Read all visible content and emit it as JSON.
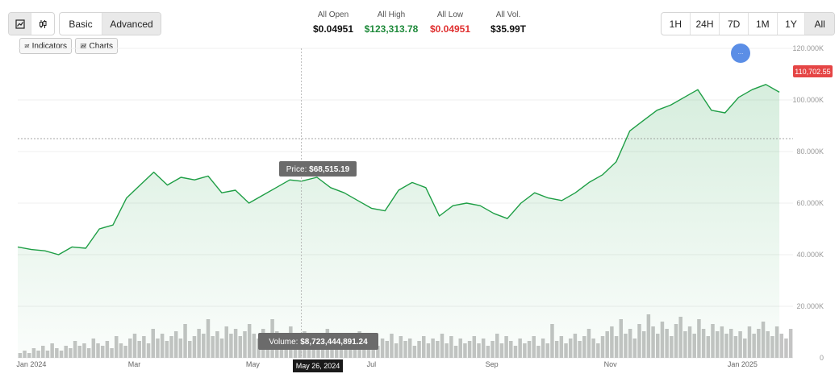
{
  "toolbar": {
    "chart_icons": [
      "line-chart-icon",
      "candlestick-icon"
    ],
    "modes": [
      "Basic",
      "Advanced"
    ],
    "active_mode": "Advanced",
    "ranges": [
      "1H",
      "24H",
      "7D",
      "1M",
      "1Y",
      "All"
    ],
    "active_range": "All",
    "tools": [
      {
        "label": "Indicators",
        "icon": "indicators-icon"
      },
      {
        "label": "Charts",
        "icon": "charts-icon"
      }
    ]
  },
  "stats": [
    {
      "label": "All Open",
      "value": "$0.04951",
      "color": "#111111"
    },
    {
      "label": "All High",
      "value": "$123,313.78",
      "color": "#1f8a3b"
    },
    {
      "label": "All Low",
      "value": "$0.04951",
      "color": "#e03030"
    },
    {
      "label": "All Vol.",
      "value": "$35.99T",
      "color": "#111111"
    }
  ],
  "colors": {
    "line": "#1e9e45",
    "area": "#1e9e45",
    "volume": "#c4c4c4",
    "current_badge": "#e54545"
  },
  "chart_data": {
    "type": "line",
    "x_ticks": [
      "Jan 2024",
      "Mar",
      "May",
      "Jul",
      "Sep",
      "Nov",
      "Jan 2025"
    ],
    "y_ticks": [
      "120.000K",
      "100.000K",
      "80.000K",
      "60.000K",
      "40.000K",
      "20.000K",
      "0"
    ],
    "ylim": [
      0,
      120000
    ],
    "price": {
      "x": [
        "2024-01-01",
        "2024-01-08",
        "2024-01-15",
        "2024-01-22",
        "2024-01-29",
        "2024-02-05",
        "2024-02-12",
        "2024-02-19",
        "2024-02-26",
        "2024-03-04",
        "2024-03-11",
        "2024-03-18",
        "2024-03-25",
        "2024-04-01",
        "2024-04-08",
        "2024-04-15",
        "2024-04-22",
        "2024-04-29",
        "2024-05-06",
        "2024-05-13",
        "2024-05-20",
        "2024-05-26",
        "2024-06-03",
        "2024-06-10",
        "2024-06-17",
        "2024-06-24",
        "2024-07-01",
        "2024-07-08",
        "2024-07-15",
        "2024-07-22",
        "2024-07-29",
        "2024-08-05",
        "2024-08-12",
        "2024-08-19",
        "2024-08-26",
        "2024-09-02",
        "2024-09-09",
        "2024-09-16",
        "2024-09-23",
        "2024-09-30",
        "2024-10-07",
        "2024-10-14",
        "2024-10-21",
        "2024-10-28",
        "2024-11-04",
        "2024-11-11",
        "2024-11-18",
        "2024-11-25",
        "2024-12-02",
        "2024-12-09",
        "2024-12-16",
        "2024-12-23",
        "2024-12-30",
        "2025-01-06",
        "2025-01-13",
        "2025-01-20",
        "2025-01-27"
      ],
      "values": [
        43000,
        42000,
        41500,
        40000,
        43000,
        42500,
        50000,
        51500,
        62000,
        67000,
        72000,
        67000,
        70000,
        69000,
        70500,
        64000,
        65000,
        60000,
        63000,
        66000,
        69000,
        68515,
        70000,
        66000,
        64000,
        61000,
        58000,
        57000,
        65000,
        68000,
        66000,
        55000,
        59000,
        60000,
        59000,
        56000,
        54000,
        60000,
        64000,
        62000,
        61000,
        64000,
        68000,
        71000,
        76000,
        88000,
        92000,
        96000,
        98000,
        101000,
        104000,
        96000,
        95000,
        101000,
        104000,
        106000,
        103000
      ]
    },
    "volume": {
      "unit": "USD",
      "values": [
        2,
        3,
        2,
        4,
        3,
        5,
        3,
        6,
        4,
        3,
        5,
        4,
        7,
        5,
        6,
        4,
        8,
        6,
        5,
        7,
        4,
        9,
        6,
        5,
        8,
        10,
        7,
        9,
        6,
        12,
        8,
        10,
        7,
        9,
        11,
        8,
        14,
        7,
        9,
        12,
        10,
        16,
        9,
        11,
        8,
        13,
        10,
        12,
        9,
        11,
        14,
        10,
        8,
        12,
        9,
        16,
        11,
        8,
        10,
        13,
        9,
        7,
        11,
        8,
        10,
        6,
        9,
        12,
        7,
        8,
        10,
        6,
        9,
        7,
        11,
        8,
        6,
        9,
        5,
        8,
        7,
        10,
        6,
        9,
        7,
        8,
        5,
        7,
        9,
        6,
        8,
        7,
        10,
        6,
        9,
        5,
        8,
        6,
        7,
        9,
        6,
        8,
        5,
        7,
        10,
        6,
        9,
        7,
        5,
        8,
        6,
        7,
        9,
        5,
        8,
        6,
        14,
        7,
        9,
        6,
        8,
        10,
        7,
        9,
        12,
        8,
        6,
        9,
        11,
        13,
        9,
        16,
        10,
        12,
        8,
        14,
        11,
        18,
        13,
        10,
        15,
        12,
        9,
        14,
        17,
        11,
        13,
        10,
        16,
        12,
        9,
        14,
        11,
        13,
        10,
        12,
        9,
        11,
        8,
        13,
        10,
        12,
        15,
        11,
        9,
        13,
        10,
        8,
        12
      ],
      "tooltip_value": "$8,723,444,891.24"
    },
    "current_price_label": "110,702.55",
    "hover": {
      "date": "May 26, 2024",
      "price_label": "Price:",
      "price_value": "$68,515.19",
      "volume_label": "Volume:",
      "volume_value": "$8,723,444,891.24"
    },
    "grid": true
  }
}
